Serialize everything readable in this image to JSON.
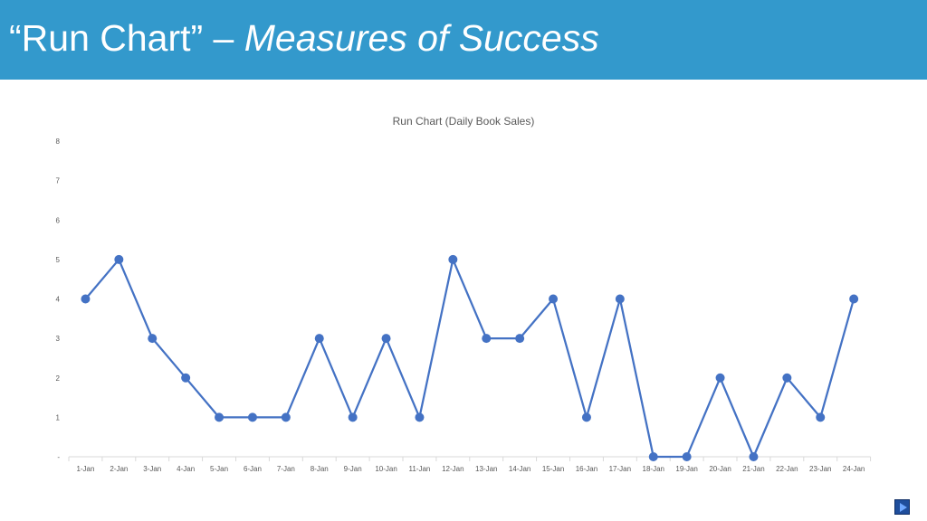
{
  "slide": {
    "title_quoted": "“Run Chart” – ",
    "title_italic": "Measures of Success"
  },
  "nav": {
    "icon": "play-triangle-icon"
  },
  "colors": {
    "header_bg": "#3399cc",
    "line": "#4472c4",
    "axis": "#d9d9d9",
    "text": "#595959"
  },
  "chart_data": {
    "type": "line",
    "title": "Run Chart (Daily Book Sales)",
    "xlabel": "",
    "ylabel": "",
    "categories": [
      "1-Jan",
      "2-Jan",
      "3-Jan",
      "4-Jan",
      "5-Jan",
      "6-Jan",
      "7-Jan",
      "8-Jan",
      "9-Jan",
      "10-Jan",
      "11-Jan",
      "12-Jan",
      "13-Jan",
      "14-Jan",
      "15-Jan",
      "16-Jan",
      "17-Jan",
      "18-Jan",
      "19-Jan",
      "20-Jan",
      "21-Jan",
      "22-Jan",
      "23-Jan",
      "24-Jan"
    ],
    "values": [
      4,
      5,
      3,
      2,
      1,
      1,
      1,
      3,
      1,
      3,
      1,
      5,
      3,
      3,
      4,
      1,
      4,
      0,
      0,
      2,
      0,
      2,
      1,
      4
    ],
    "ylim": [
      0,
      8
    ],
    "yticks": [
      "-",
      "1",
      "2",
      "3",
      "4",
      "5",
      "6",
      "7",
      "8"
    ],
    "grid": false,
    "legend": "none",
    "markers": true
  }
}
